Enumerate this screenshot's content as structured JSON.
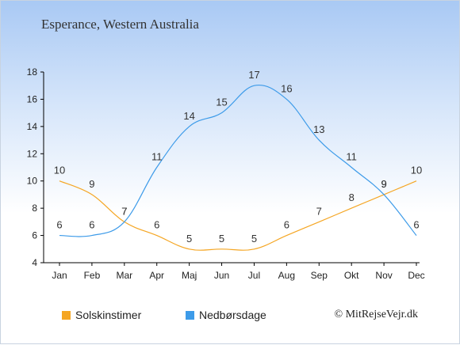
{
  "header": {
    "title": "Esperance, Western Australia"
  },
  "footer": {
    "credit": "© MitRejseVejr.dk"
  },
  "colors": {
    "sun": "#f5a623",
    "rain": "#3d9be9",
    "text": "#333333"
  },
  "chart_data": {
    "type": "line",
    "categories": [
      "Jan",
      "Feb",
      "Mar",
      "Apr",
      "Maj",
      "Jun",
      "Jul",
      "Aug",
      "Sep",
      "Okt",
      "Nov",
      "Dec"
    ],
    "ylim": [
      4,
      18
    ],
    "yticks": [
      4,
      6,
      8,
      10,
      12,
      14,
      16,
      18
    ],
    "grid": false,
    "legend_position": "bottom-left",
    "series": [
      {
        "name": "Solskinstimer",
        "color": "#f5a623",
        "values": [
          10,
          9,
          7,
          6,
          5,
          5,
          5,
          6,
          7,
          8,
          9,
          10
        ]
      },
      {
        "name": "Nedbørsdage",
        "color": "#3d9be9",
        "values": [
          6,
          6,
          7,
          11,
          14,
          15,
          17,
          16,
          13,
          11,
          9,
          6
        ]
      }
    ]
  }
}
